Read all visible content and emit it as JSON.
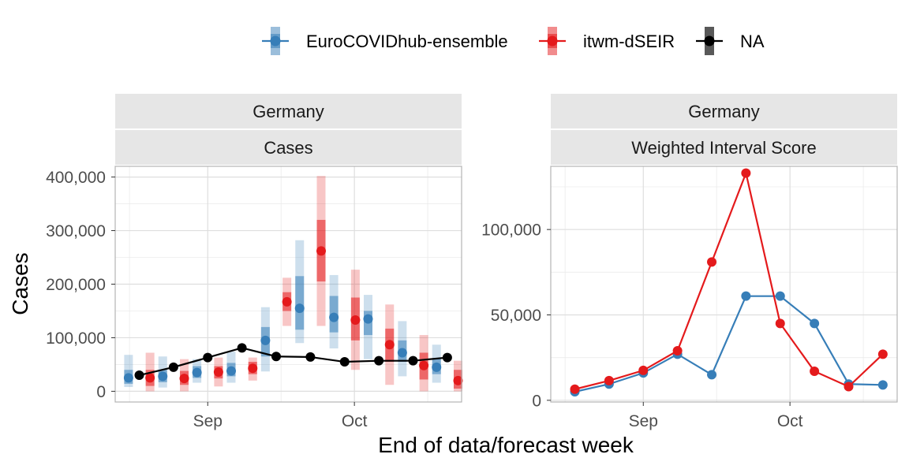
{
  "legend": {
    "items": [
      {
        "label": "EuroCOVIDhub-ensemble",
        "color": "#377EB8"
      },
      {
        "label": "itwm-dSEIR",
        "color": "#E41A1C"
      },
      {
        "label": "NA",
        "color": "#000000"
      }
    ]
  },
  "axis_titles": {
    "x": "End of data/forecast week",
    "y": "Cases"
  },
  "chart_data": [
    {
      "type": "line",
      "panel": "cases",
      "strips": [
        "Germany",
        "Cases"
      ],
      "xlabel": "End of data/forecast week",
      "ylabel": "Cases",
      "x_ticks": [
        {
          "label": "Sep",
          "date": "2021-09-01"
        },
        {
          "label": "Oct",
          "date": "2021-10-01"
        }
      ],
      "xlim": [
        "2021-08-16",
        "2021-10-20"
      ],
      "y_ticks": [
        0,
        100000,
        200000,
        300000,
        400000
      ],
      "y_tick_labels": [
        "0",
        "100,000",
        "200,000",
        "300,000",
        "400,000"
      ],
      "ylim": [
        -20000,
        420000
      ],
      "grid": true,
      "observed": {
        "name": "NA",
        "color": "#000000",
        "points": [
          {
            "date": "2021-08-18",
            "value": 30000
          },
          {
            "date": "2021-08-25",
            "value": 45000
          },
          {
            "date": "2021-09-01",
            "value": 63000
          },
          {
            "date": "2021-09-08",
            "value": 81000
          },
          {
            "date": "2021-09-15",
            "value": 65000
          },
          {
            "date": "2021-09-22",
            "value": 64000
          },
          {
            "date": "2021-09-29",
            "value": 55000
          },
          {
            "date": "2021-10-06",
            "value": 57000
          },
          {
            "date": "2021-10-13",
            "value": 57000
          },
          {
            "date": "2021-10-20",
            "value": 63000
          }
        ]
      },
      "forecasts": [
        {
          "name": "EuroCOVIDhub-ensemble",
          "color": "#377EB8",
          "points": [
            {
              "date": "2021-08-18",
              "median": 25000,
              "lo50": 14000,
              "hi50": 40000,
              "lo90": 8000,
              "hi90": 68000
            },
            {
              "date": "2021-08-25",
              "median": 28000,
              "lo50": 17000,
              "hi50": 40000,
              "lo90": 7000,
              "hi90": 65000
            },
            {
              "date": "2021-09-01",
              "median": 35000,
              "lo50": 25000,
              "hi50": 47000,
              "lo90": 16000,
              "hi90": 60000
            },
            {
              "date": "2021-09-08",
              "median": 38000,
              "lo50": 28000,
              "hi50": 53000,
              "lo90": 16000,
              "hi90": 74000
            },
            {
              "date": "2021-09-15",
              "median": 95000,
              "lo50": 65000,
              "hi50": 120000,
              "lo90": 37000,
              "hi90": 157000
            },
            {
              "date": "2021-09-22",
              "median": 155000,
              "lo50": 115000,
              "hi50": 215000,
              "lo90": 90000,
              "hi90": 282000
            },
            {
              "date": "2021-09-29",
              "median": 138000,
              "lo50": 110000,
              "hi50": 178000,
              "lo90": 80000,
              "hi90": 217000
            },
            {
              "date": "2021-10-06",
              "median": 135000,
              "lo50": 105000,
              "hi50": 150000,
              "lo90": 60000,
              "hi90": 180000
            },
            {
              "date": "2021-10-13",
              "median": 72000,
              "lo50": 55000,
              "hi50": 95000,
              "lo90": 28000,
              "hi90": 131000
            },
            {
              "date": "2021-10-20",
              "median": 45000,
              "lo50": 32000,
              "hi50": 62000,
              "lo90": 16000,
              "hi90": 87000
            }
          ]
        },
        {
          "name": "itwm-dSEIR",
          "color": "#E41A1C",
          "points": [
            {
              "date": "2021-08-18",
              "median": 25000,
              "lo50": 10000,
              "hi50": 40000,
              "lo90": 0,
              "hi90": 72000
            },
            {
              "date": "2021-08-25",
              "median": 24000,
              "lo50": 12000,
              "hi50": 38000,
              "lo90": 0,
              "hi90": 60000
            },
            {
              "date": "2021-09-01",
              "median": 36000,
              "lo50": 24000,
              "hi50": 47000,
              "lo90": 9000,
              "hi90": 63000
            },
            {
              "date": "2021-09-08",
              "median": 43000,
              "lo50": 32000,
              "hi50": 55000,
              "lo90": 20000,
              "hi90": 63000
            },
            {
              "date": "2021-09-15",
              "median": 167000,
              "lo50": 150000,
              "hi50": 185000,
              "lo90": 122000,
              "hi90": 212000
            },
            {
              "date": "2021-09-22",
              "median": 262000,
              "lo50": 205000,
              "hi50": 320000,
              "lo90": 122000,
              "hi90": 402000
            },
            {
              "date": "2021-09-29",
              "median": 133000,
              "lo50": 95000,
              "hi50": 175000,
              "lo90": 40000,
              "hi90": 227000
            },
            {
              "date": "2021-10-06",
              "median": 87000,
              "lo50": 55000,
              "hi50": 117000,
              "lo90": 12000,
              "hi90": 162000
            },
            {
              "date": "2021-10-13",
              "median": 48000,
              "lo50": 22000,
              "hi50": 72000,
              "lo90": 0,
              "hi90": 105000
            },
            {
              "date": "2021-10-20",
              "median": 20000,
              "lo50": 5000,
              "hi50": 40000,
              "lo90": 0,
              "hi90": 57000
            }
          ]
        }
      ]
    },
    {
      "type": "line",
      "panel": "wis",
      "strips": [
        "Germany",
        "Weighted Interval Score"
      ],
      "xlabel": "End of data/forecast week",
      "x_ticks": [
        {
          "label": "Sep",
          "date": "2021-09-01"
        },
        {
          "label": "Oct",
          "date": "2021-10-01"
        }
      ],
      "xlim": [
        "2021-08-16",
        "2021-10-20"
      ],
      "y_ticks": [
        0,
        50000,
        100000
      ],
      "y_tick_labels": [
        "0",
        "50,000",
        "100,000"
      ],
      "ylim": [
        -1000,
        137000
      ],
      "grid": true,
      "series": [
        {
          "name": "EuroCOVIDhub-ensemble",
          "color": "#377EB8",
          "points": [
            {
              "date": "2021-08-18",
              "value": 5000
            },
            {
              "date": "2021-08-25",
              "value": 9500
            },
            {
              "date": "2021-09-01",
              "value": 16000
            },
            {
              "date": "2021-09-08",
              "value": 27000
            },
            {
              "date": "2021-09-15",
              "value": 15000
            },
            {
              "date": "2021-09-22",
              "value": 61000
            },
            {
              "date": "2021-09-29",
              "value": 61000
            },
            {
              "date": "2021-10-06",
              "value": 45000
            },
            {
              "date": "2021-10-13",
              "value": 9500
            },
            {
              "date": "2021-10-20",
              "value": 9000
            }
          ]
        },
        {
          "name": "itwm-dSEIR",
          "color": "#E41A1C",
          "points": [
            {
              "date": "2021-08-18",
              "value": 6500
            },
            {
              "date": "2021-08-25",
              "value": 11500
            },
            {
              "date": "2021-09-01",
              "value": 17500
            },
            {
              "date": "2021-09-08",
              "value": 29000
            },
            {
              "date": "2021-09-15",
              "value": 81000
            },
            {
              "date": "2021-09-22",
              "value": 133000
            },
            {
              "date": "2021-09-29",
              "value": 45000
            },
            {
              "date": "2021-10-06",
              "value": 17000
            },
            {
              "date": "2021-10-13",
              "value": 8000
            },
            {
              "date": "2021-10-20",
              "value": 27000
            }
          ]
        }
      ]
    }
  ]
}
